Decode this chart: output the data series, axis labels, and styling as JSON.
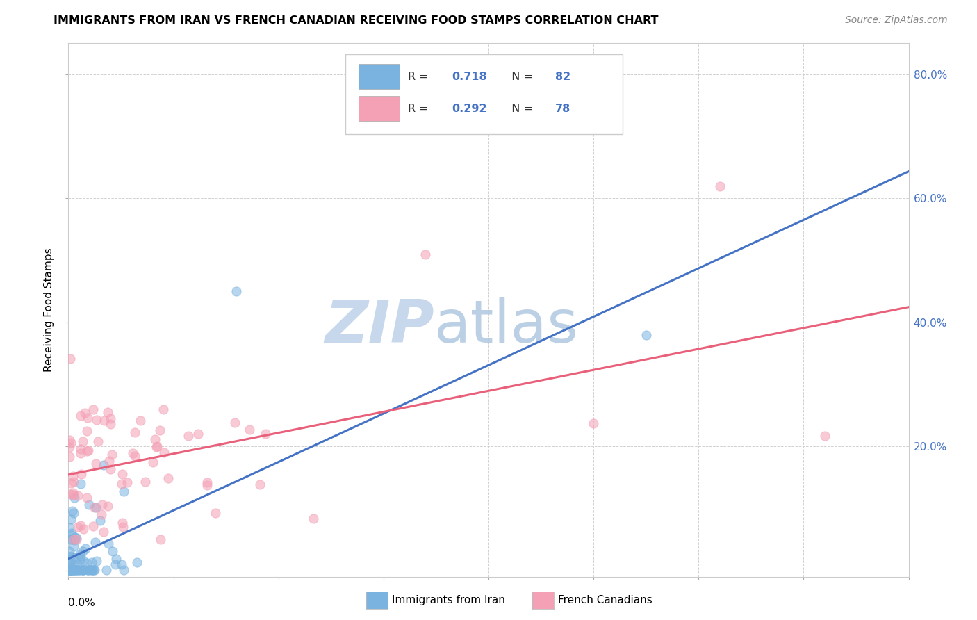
{
  "title": "IMMIGRANTS FROM IRAN VS FRENCH CANADIAN RECEIVING FOOD STAMPS CORRELATION CHART",
  "source": "Source: ZipAtlas.com",
  "ylabel": "Receiving Food Stamps",
  "xlim": [
    0,
    0.8
  ],
  "ylim": [
    -0.01,
    0.85
  ],
  "blue_color": "#7ab3e0",
  "pink_color": "#f4a0b5",
  "blue_line_color": "#4472c4",
  "pink_line_color": "#e8607a",
  "legend_text_color": "#4472c4",
  "R_iran": 0.718,
  "N_iran": 82,
  "R_french": 0.292,
  "N_french": 78,
  "legend_label_iran": "Immigrants from Iran",
  "legend_label_french": "French Canadians",
  "background_color": "#ffffff",
  "grid_color": "#cccccc",
  "watermark_zip_color": "#c8d8ec",
  "watermark_atlas_color": "#b0c8e0"
}
